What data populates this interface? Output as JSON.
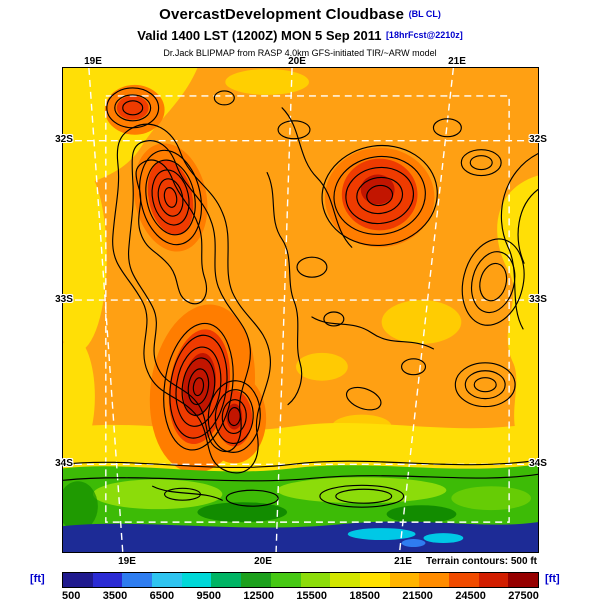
{
  "header": {
    "title": "OvercastDevelopment Cloudbase",
    "title_tag": "(BL CL)",
    "valid": "Valid 1400 LST (1200Z) MON 5 Sep 2011",
    "valid_tag": "[18hrFcst@2210z]",
    "model": "Dr.Jack BLIPMAP from RASP 4.0km GFS-initiated TIR/~ARW model"
  },
  "map": {
    "lon_labels_top": [
      "19E",
      "20E",
      "21E"
    ],
    "lon_labels_bottom": [
      "19E",
      "20E",
      "21E"
    ],
    "lat_labels_left": [
      "32S",
      "33S",
      "34S"
    ],
    "lat_labels_right": [
      "32S",
      "33S",
      "34S"
    ],
    "terrain_note": "Terrain contours: 500 ft"
  },
  "legend": {
    "unit_left": "[ft]",
    "unit_right": "[ft]",
    "ticks": [
      "500",
      "3500",
      "6500",
      "9500",
      "12500",
      "15500",
      "18500",
      "21500",
      "24500",
      "27500"
    ],
    "colors": [
      "#201a8e",
      "#2b2bd4",
      "#2f7df0",
      "#2fc4f0",
      "#00d8d8",
      "#00b464",
      "#1ca01c",
      "#46c814",
      "#8cdc0a",
      "#d2e600",
      "#ffe100",
      "#ffb400",
      "#ff8c00",
      "#f04b00",
      "#d21e00",
      "#960000"
    ]
  },
  "chart_data": {
    "type": "heatmap",
    "title": "OvercastDevelopment Cloudbase (BL CL)",
    "valid": "1400 LST (1200Z) MON 5 Sep 2011",
    "units": "ft",
    "scale_ticks": [
      500,
      3500,
      6500,
      9500,
      12500,
      15500,
      18500,
      21500,
      24500,
      27500
    ],
    "scale_range": [
      500,
      27500
    ],
    "terrain_contour_interval_ft": 500,
    "region": {
      "lon_ticks": [
        "19E",
        "20E",
        "21E"
      ],
      "lat_ticks": [
        "32S",
        "33S",
        "34S"
      ]
    },
    "field_summary": "Cloudbase about 18500-24500 ft (orange) over most of the interior with red cores near 24500-27500 ft over the western and north-central mountains, yellow 15500-18500 ft along the west and east edges, green 6500-12500 ft over the southern coastal strip, and dark blue lowest values (~500-3500 ft) with cyan patches along the bottom (offshore) edge."
  }
}
